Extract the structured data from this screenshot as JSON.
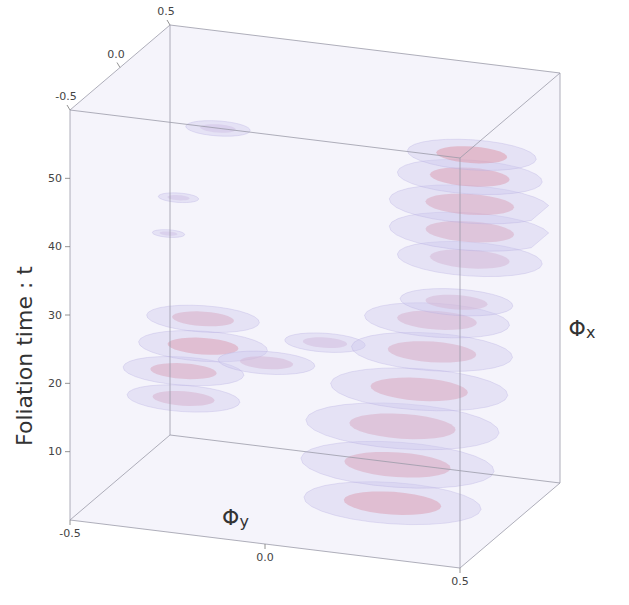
{
  "chart_data": {
    "type": "volume",
    "x_label": "Φy",
    "y_label": "Φx",
    "z_label": "Foliation time : t",
    "xlim": [
      -0.5,
      0.5
    ],
    "ylim": [
      -0.5,
      0.5
    ],
    "zlim": [
      0,
      60
    ],
    "xticks": [
      -0.5,
      {
        "value": 0,
        "label": "0.0"
      },
      0.5
    ],
    "yticks": [
      -0.5,
      {
        "value": 0,
        "label": "0.0"
      },
      0.5
    ],
    "zticks": [
      10,
      20,
      30,
      40,
      50
    ],
    "blobs": [
      {
        "phi_y": 0.32,
        "phi_x": 0.3,
        "t": 34,
        "radius": 0.18,
        "density": 0.3
      },
      {
        "phi_y": 0.32,
        "phi_x": 0.3,
        "t": 38,
        "radius": 0.2,
        "density": 0.5
      },
      {
        "phi_y": 0.32,
        "phi_x": 0.3,
        "t": 42,
        "radius": 0.2,
        "density": 0.6
      },
      {
        "phi_y": 0.32,
        "phi_x": 0.3,
        "t": 46,
        "radius": 0.18,
        "density": 0.7
      },
      {
        "phi_y": 0.32,
        "phi_x": 0.32,
        "t": 49,
        "radius": 0.16,
        "density": 0.8
      },
      {
        "phi_y": -0.3,
        "phi_x": 0.2,
        "t": 50,
        "radius": 0.08,
        "density": 0.1
      },
      {
        "phi_y": -0.35,
        "phi_x": 0.0,
        "t": 42,
        "radius": 0.05,
        "density": 0.1
      },
      {
        "phi_y": -0.35,
        "phi_x": -0.1,
        "t": 38,
        "radius": 0.04,
        "density": 0.1
      },
      {
        "phi_y": -0.35,
        "phi_x": 0.05,
        "t": 12,
        "radius": 0.14,
        "density": 0.4
      },
      {
        "phi_y": -0.35,
        "phi_x": 0.05,
        "t": 16,
        "radius": 0.15,
        "density": 0.6
      },
      {
        "phi_y": -0.3,
        "phi_x": 0.05,
        "t": 20,
        "radius": 0.16,
        "density": 0.7
      },
      {
        "phi_y": -0.3,
        "phi_x": 0.05,
        "t": 24,
        "radius": 0.14,
        "density": 0.5
      },
      {
        "phi_y": -0.15,
        "phi_x": 0.1,
        "t": 18,
        "radius": 0.12,
        "density": 0.3
      },
      {
        "phi_y": 0.0,
        "phi_x": 0.1,
        "t": 22,
        "radius": 0.1,
        "density": 0.2
      },
      {
        "phi_y": 0.25,
        "phi_x": -0.2,
        "t": 4,
        "radius": 0.22,
        "density": 0.7
      },
      {
        "phi_y": 0.25,
        "phi_x": -0.15,
        "t": 9,
        "radius": 0.24,
        "density": 0.6
      },
      {
        "phi_y": 0.25,
        "phi_x": -0.1,
        "t": 14,
        "radius": 0.24,
        "density": 0.5
      },
      {
        "phi_y": 0.28,
        "phi_x": -0.05,
        "t": 19,
        "radius": 0.22,
        "density": 0.6
      },
      {
        "phi_y": 0.3,
        "phi_x": 0.0,
        "t": 24,
        "radius": 0.2,
        "density": 0.5
      },
      {
        "phi_y": 0.3,
        "phi_x": 0.05,
        "t": 28,
        "radius": 0.18,
        "density": 0.4
      },
      {
        "phi_y": 0.35,
        "phi_x": 0.05,
        "t": 31,
        "radius": 0.14,
        "density": 0.3
      }
    ]
  }
}
